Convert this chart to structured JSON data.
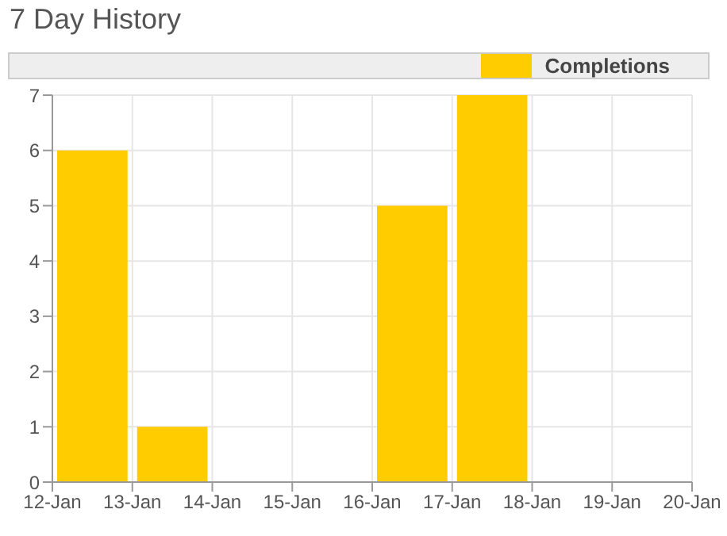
{
  "chart_data": {
    "type": "bar",
    "title": "7 Day History",
    "x": [
      "--01-12T12:00",
      "--01-13T12:00",
      "--01-14T12:00",
      "--01-15T12:00",
      "--01-16T12:00",
      "--01-17T12:00",
      "--01-18T12:00",
      "--01-19T12:00"
    ],
    "series": [
      {
        "name": "Completions",
        "color": "#ffcc00",
        "values": [
          6,
          1,
          0,
          0,
          5,
          7,
          0,
          0
        ]
      }
    ],
    "xlim": [
      "--01-12",
      "--01-20"
    ],
    "xticks": [
      {
        "value": "--01-12",
        "label": "12-Jan"
      },
      {
        "value": "--01-13",
        "label": "13-Jan"
      },
      {
        "value": "--01-14",
        "label": "14-Jan"
      },
      {
        "value": "--01-15",
        "label": "15-Jan"
      },
      {
        "value": "--01-16",
        "label": "16-Jan"
      },
      {
        "value": "--01-17",
        "label": "17-Jan"
      },
      {
        "value": "--01-18",
        "label": "18-Jan"
      },
      {
        "value": "--01-19",
        "label": "19-Jan"
      },
      {
        "value": "--01-20",
        "label": "20-Jan"
      }
    ],
    "ylim": [
      0,
      7
    ],
    "yticks": [
      0,
      1,
      2,
      3,
      4,
      5,
      6,
      7
    ],
    "grid": true,
    "legend": "top"
  }
}
